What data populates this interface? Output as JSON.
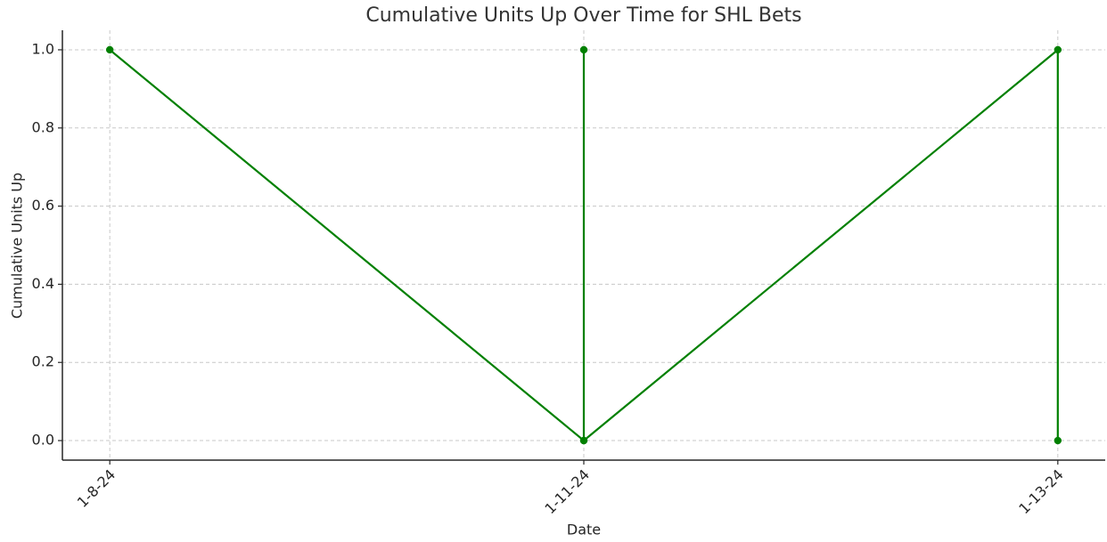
{
  "chart_data": {
    "type": "line",
    "title": "Cumulative Units Up Over Time for SHL Bets",
    "x_label": "Date",
    "y_label": "Cumulative Units Up",
    "x": [
      "1-8-24",
      "1-11-24",
      "1-11-24",
      "1-11-24",
      "1-13-24",
      "1-13-24"
    ],
    "series": [
      {
        "name": "Cumulative Units Up",
        "color": "#008000",
        "values": [
          1,
          0,
          1,
          0,
          1,
          0
        ]
      }
    ],
    "ylim": [
      -0.05,
      1.05
    ],
    "yticks": [
      {
        "value": 0,
        "label": "0.0"
      },
      {
        "value": 0.2,
        "label": "0.2"
      },
      {
        "value": 0.4,
        "label": "0.4"
      },
      {
        "value": 0.6,
        "label": "0.6"
      },
      {
        "value": 0.8,
        "label": "0.8"
      },
      {
        "value": 1,
        "label": "1.0"
      }
    ],
    "grid": true
  }
}
